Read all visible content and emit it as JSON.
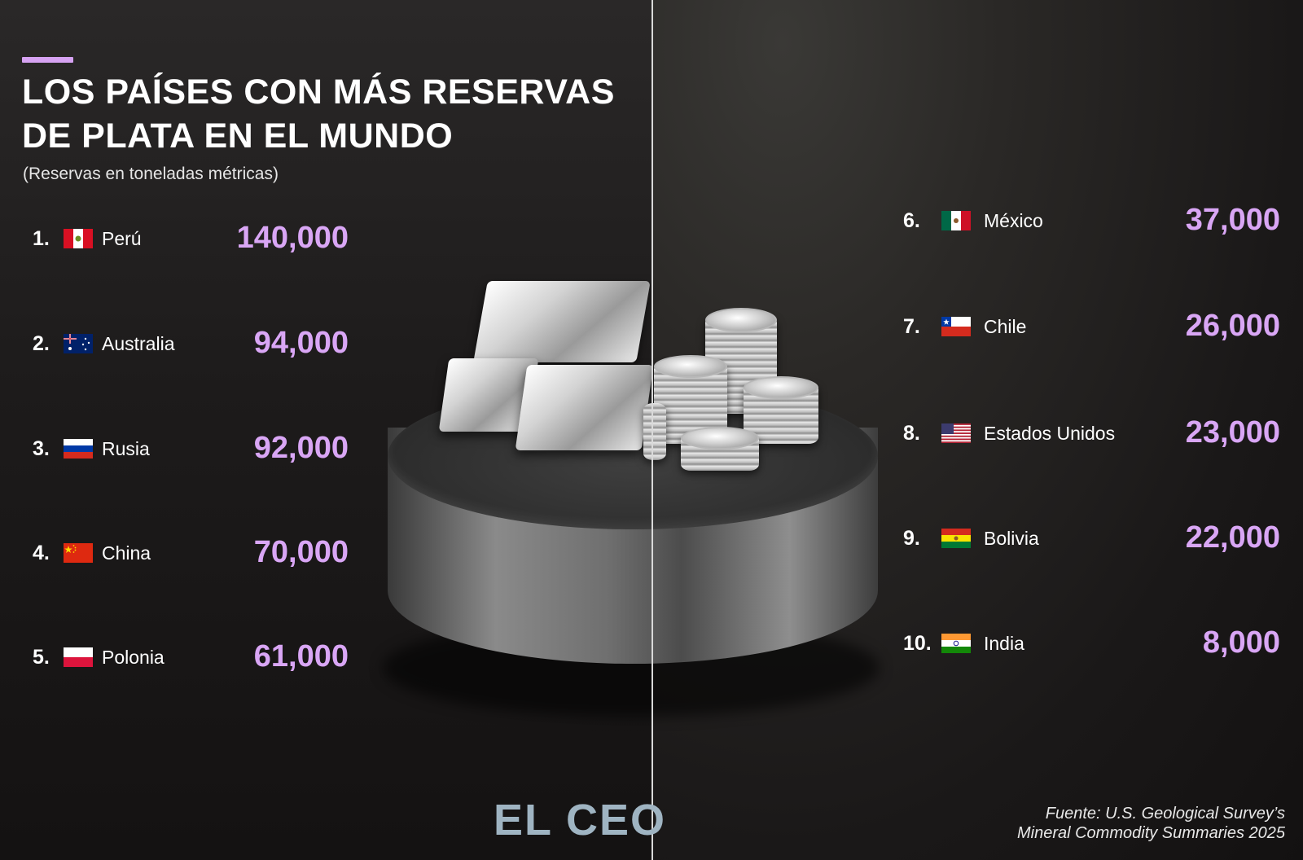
{
  "header": {
    "title": "LOS PAÍSES CON MÁS RESERVAS DE PLATA EN EL MUNDO",
    "subtitle": "(Reservas en toneladas métricas)"
  },
  "chart_data": {
    "type": "table",
    "title": "LOS PAÍSES CON MÁS RESERVAS DE PLATA EN EL MUNDO",
    "subtitle": "(Reservas en toneladas métricas)",
    "unit": "toneladas métricas",
    "categories": [
      "Perú",
      "Australia",
      "Rusia",
      "China",
      "Polonia",
      "México",
      "Chile",
      "Estados Unidos",
      "Bolivia",
      "India"
    ],
    "values": [
      140000,
      94000,
      92000,
      70000,
      61000,
      37000,
      26000,
      23000,
      22000,
      8000
    ],
    "rows": [
      {
        "rank": "1.",
        "country": "Perú",
        "value": "140,000",
        "flag": "peru-flag-icon"
      },
      {
        "rank": "2.",
        "country": "Australia",
        "value": "94,000",
        "flag": "australia-flag-icon"
      },
      {
        "rank": "3.",
        "country": "Rusia",
        "value": "92,000",
        "flag": "russia-flag-icon"
      },
      {
        "rank": "4.",
        "country": "China",
        "value": "70,000",
        "flag": "china-flag-icon"
      },
      {
        "rank": "5.",
        "country": "Polonia",
        "value": "61,000",
        "flag": "poland-flag-icon"
      },
      {
        "rank": "6.",
        "country": "México",
        "value": "37,000",
        "flag": "mexico-flag-icon"
      },
      {
        "rank": "7.",
        "country": "Chile",
        "value": "26,000",
        "flag": "chile-flag-icon"
      },
      {
        "rank": "8.",
        "country": "Estados Unidos",
        "value": "23,000",
        "flag": "usa-flag-icon"
      },
      {
        "rank": "9.",
        "country": "Bolivia",
        "value": "22,000",
        "flag": "bolivia-flag-icon"
      },
      {
        "rank": "10.",
        "country": "India",
        "value": "8,000",
        "flag": "india-flag-icon"
      }
    ]
  },
  "footer": {
    "logo": "EL CEO",
    "source_line1": "Fuente: U.S. Geological Survey’s",
    "source_line2": "Mineral Commodity Summaries 2025"
  },
  "colors": {
    "accent": "#d6a2f2",
    "value_text": "#d9a6f5",
    "background": "#1a1818",
    "logo": "#9fb4c2"
  },
  "illustration": "silver-bars-and-coins-on-pedestal-icon"
}
